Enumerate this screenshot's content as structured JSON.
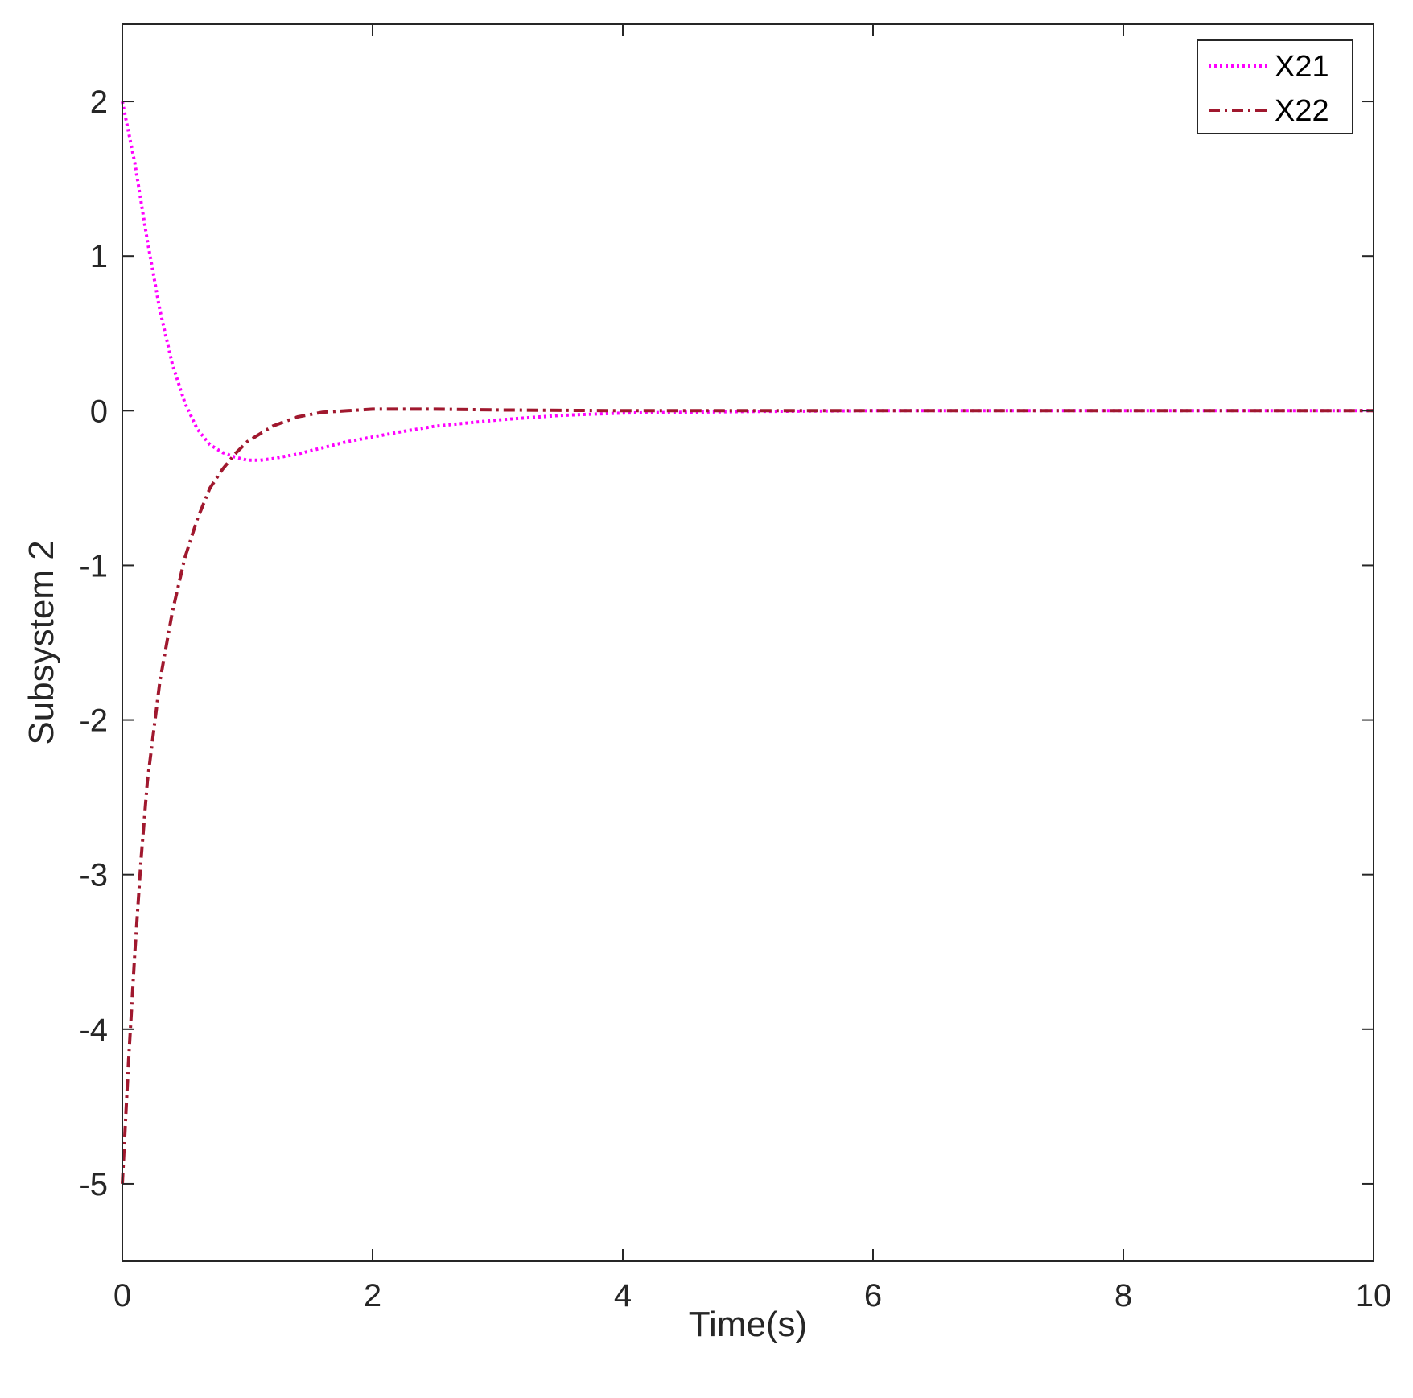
{
  "chart_data": {
    "type": "line",
    "xlabel": "Time(s)",
    "ylabel": "Subsystem 2",
    "xlim": [
      0,
      10
    ],
    "ylim": [
      -5.5,
      2.5
    ],
    "xticks": [
      0,
      2,
      4,
      6,
      8,
      10
    ],
    "yticks": [
      2,
      1,
      0,
      -1,
      -2,
      -3,
      -4,
      -5
    ],
    "grid": false,
    "legend_position": "top-right",
    "series": [
      {
        "name": "X21",
        "color": "#ff00ff",
        "style": "dotted",
        "x": [
          0,
          0.1,
          0.2,
          0.3,
          0.4,
          0.5,
          0.6,
          0.7,
          0.8,
          0.9,
          1.0,
          1.1,
          1.2,
          1.4,
          1.6,
          1.8,
          2.0,
          2.2,
          2.5,
          3.0,
          3.5,
          4.0,
          5.0,
          6.0,
          7.0,
          8.0,
          9.0,
          10.0
        ],
        "y": [
          2.0,
          1.6,
          1.1,
          0.65,
          0.3,
          0.05,
          -0.12,
          -0.22,
          -0.27,
          -0.3,
          -0.32,
          -0.32,
          -0.31,
          -0.28,
          -0.24,
          -0.2,
          -0.17,
          -0.14,
          -0.1,
          -0.06,
          -0.03,
          -0.015,
          -0.005,
          0,
          0,
          0,
          0,
          0
        ]
      },
      {
        "name": "X22",
        "color": "#a0182e",
        "style": "dashdot",
        "x": [
          0,
          0.05,
          0.1,
          0.15,
          0.2,
          0.3,
          0.4,
          0.5,
          0.6,
          0.7,
          0.8,
          0.9,
          1.0,
          1.2,
          1.4,
          1.6,
          1.8,
          2.0,
          2.5,
          3.0,
          4.0,
          5.0,
          6.0,
          7.0,
          8.0,
          9.0,
          10.0
        ],
        "y": [
          -5.0,
          -4.2,
          -3.5,
          -2.9,
          -2.4,
          -1.75,
          -1.3,
          -0.95,
          -0.7,
          -0.5,
          -0.38,
          -0.28,
          -0.2,
          -0.1,
          -0.04,
          -0.01,
          0.0,
          0.01,
          0.01,
          0.005,
          0,
          0,
          0,
          0,
          0,
          0,
          0
        ]
      }
    ]
  }
}
